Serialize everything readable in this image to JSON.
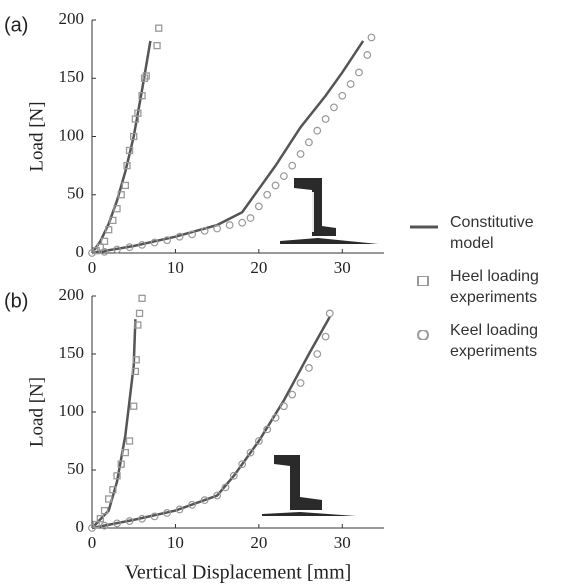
{
  "chart_data": [
    {
      "type": "line",
      "panel_label": "(a)",
      "ylabel": "Load [N]",
      "xlim": [
        0,
        35
      ],
      "ylim": [
        0,
        200
      ],
      "xticks": [
        0,
        10,
        20,
        30
      ],
      "yticks": [
        0,
        50,
        100,
        150,
        200
      ],
      "series": [
        {
          "name": "Constitutive model",
          "color": "#555555",
          "marker": "line",
          "x": [
            0,
            1,
            2,
            3,
            4,
            5,
            6,
            7,
            null,
            0,
            5,
            10,
            15,
            18,
            20,
            22,
            25,
            28,
            30,
            32.5
          ],
          "values": [
            0,
            10,
            25,
            45,
            70,
            100,
            140,
            182,
            null,
            0,
            6,
            14,
            24,
            35,
            55,
            75,
            108,
            135,
            155,
            182
          ]
        },
        {
          "name": "Heel loading experiments",
          "color": "#999999",
          "marker": "square",
          "x": [
            0.5,
            1,
            1.5,
            2,
            2.5,
            3,
            3.5,
            4,
            4.2,
            4.5,
            5,
            5.2,
            5.5,
            6,
            6.3,
            6.5,
            7.8,
            8
          ],
          "values": [
            2,
            5,
            10,
            20,
            28,
            38,
            50,
            58,
            75,
            88,
            100,
            115,
            120,
            135,
            150,
            152,
            178,
            193
          ]
        },
        {
          "name": "Keel loading experiments",
          "color": "#999999",
          "marker": "circle",
          "x": [
            0,
            1.5,
            3,
            4.5,
            6,
            7.5,
            9,
            10.5,
            12,
            13.5,
            15,
            16.5,
            18,
            19,
            20,
            21,
            22,
            23,
            24,
            25,
            26,
            27,
            28,
            29,
            30,
            31,
            32,
            33,
            33.5
          ],
          "values": [
            0,
            1,
            3,
            5,
            7,
            9,
            11,
            14,
            16,
            19,
            21,
            24,
            26,
            30,
            40,
            50,
            58,
            66,
            75,
            85,
            95,
            105,
            115,
            125,
            135,
            145,
            155,
            170,
            185
          ]
        }
      ]
    },
    {
      "type": "line",
      "panel_label": "(b)",
      "ylabel": "Load [N]",
      "xlabel": "Vertical Displacement [mm]",
      "xlim": [
        0,
        35
      ],
      "ylim": [
        0,
        200
      ],
      "xticks": [
        0,
        10,
        20,
        30
      ],
      "yticks": [
        0,
        50,
        100,
        150,
        200
      ],
      "series": [
        {
          "color": "#555555",
          "marker": "line",
          "x": [
            0,
            2,
            3,
            4,
            5,
            5.2,
            null,
            0,
            5,
            10,
            15,
            17,
            20,
            23,
            26,
            28.5
          ],
          "values": [
            0,
            15,
            40,
            80,
            140,
            180,
            null,
            0,
            7,
            15,
            28,
            45,
            75,
            110,
            150,
            182
          ]
        },
        {
          "color": "#999999",
          "marker": "square",
          "x": [
            0.5,
            1,
            1.5,
            2,
            2.5,
            3,
            3.5,
            4,
            4.5,
            5,
            5.2,
            5.3,
            5.5,
            5.7,
            6
          ],
          "values": [
            3,
            8,
            15,
            25,
            33,
            45,
            55,
            65,
            75,
            105,
            135,
            145,
            175,
            185,
            198
          ]
        },
        {
          "color": "#999999",
          "marker": "circle",
          "x": [
            0,
            1.5,
            3,
            4.5,
            6,
            7.5,
            9,
            10.5,
            12,
            13.5,
            15,
            16,
            17,
            18,
            19,
            20,
            21,
            22,
            23,
            24,
            25,
            26,
            27,
            28,
            28.5
          ],
          "values": [
            0,
            2,
            4,
            6,
            8,
            10,
            13,
            16,
            20,
            24,
            28,
            35,
            45,
            55,
            65,
            75,
            85,
            95,
            105,
            115,
            125,
            138,
            150,
            165,
            185
          ]
        }
      ]
    }
  ]
}
